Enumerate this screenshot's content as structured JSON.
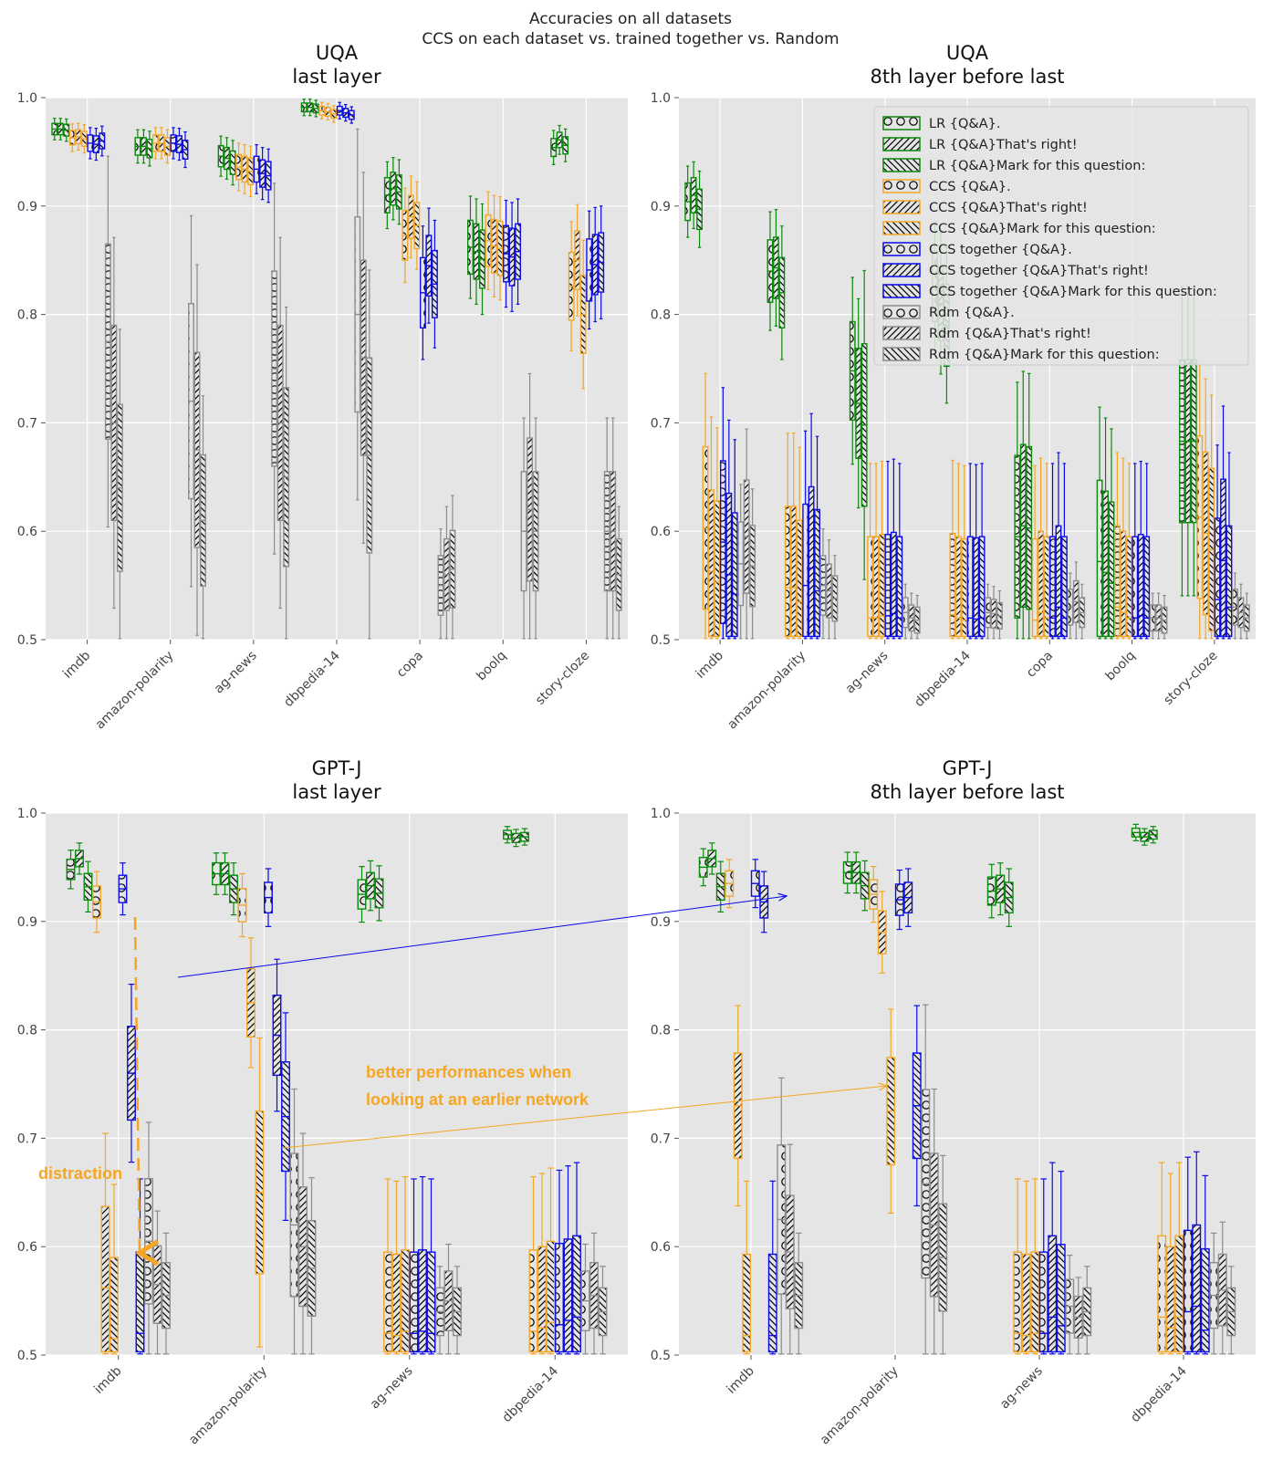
{
  "figure": {
    "title_line1": "Accuracies on all datasets",
    "title_line2": "CCS on each dataset vs. trained together vs. Random"
  },
  "colors": {
    "LR": "#0a8a0a",
    "CCS": "#f5a623",
    "CCS together": "#0a0aeb",
    "Rdm": "#8c8c8c"
  },
  "legend": {
    "entries": [
      {
        "label": "LR {Q&A}.",
        "method": "LR",
        "pattern": "circles"
      },
      {
        "label": "LR {Q&A}That's right!",
        "method": "LR",
        "pattern": "fwd"
      },
      {
        "label": "LR {Q&A}Mark for this question:",
        "method": "LR",
        "pattern": "back"
      },
      {
        "label": "CCS {Q&A}.",
        "method": "CCS",
        "pattern": "circles"
      },
      {
        "label": "CCS {Q&A}That's right!",
        "method": "CCS",
        "pattern": "fwd"
      },
      {
        "label": "CCS {Q&A}Mark for this question:",
        "method": "CCS",
        "pattern": "back"
      },
      {
        "label": "CCS together {Q&A}.",
        "method": "CCS together",
        "pattern": "circles"
      },
      {
        "label": "CCS together {Q&A}That's right!",
        "method": "CCS together",
        "pattern": "fwd"
      },
      {
        "label": "CCS together {Q&A}Mark for this question:",
        "method": "CCS together",
        "pattern": "back"
      },
      {
        "label": "Rdm {Q&A}.",
        "method": "Rdm",
        "pattern": "circles"
      },
      {
        "label": "Rdm {Q&A}That's right!",
        "method": "Rdm",
        "pattern": "fwd"
      },
      {
        "label": "Rdm {Q&A}Mark for this question:",
        "method": "Rdm",
        "pattern": "back"
      }
    ]
  },
  "annotations": {
    "distraction": "distraction",
    "better_line1": "better performances when",
    "better_line2": "looking at an earlier network"
  },
  "chart_data": [
    {
      "type": "box",
      "title_line1": "UQA",
      "title_line2": "last layer",
      "ylim": [
        0.5,
        1.0
      ],
      "yticks": [
        "0.5",
        "0.6",
        "0.7",
        "0.8",
        "0.9",
        "1.0"
      ],
      "categories": [
        "imdb",
        "amazon-polarity",
        "ag-news",
        "dbpedia-14",
        "copa",
        "boolq",
        "story-cloze"
      ],
      "series": [
        {
          "method": "LR",
          "medians": [
            [
              0.971,
              0.971,
              0.97
            ],
            [
              0.955,
              0.955,
              0.953
            ],
            [
              0.946,
              0.944,
              0.94
            ],
            [
              0.991,
              0.991,
              0.99
            ],
            [
              0.91,
              0.916,
              0.913
            ],
            [
              0.862,
              0.858,
              0.851
            ],
            [
              0.954,
              0.961,
              0.956
            ]
          ]
        },
        {
          "method": "CCS",
          "medians": [
            [
              0.963,
              0.964,
              0.962
            ],
            [
              0.958,
              0.958,
              0.955
            ],
            [
              0.936,
              0.934,
              0.932
            ],
            [
              0.988,
              0.987,
              0.985
            ],
            [
              0.873,
              0.89,
              0.882
            ],
            [
              0.868,
              0.863,
              0.861
            ],
            [
              0.826,
              0.85,
              0.8
            ]
          ]
        },
        {
          "method": "CCS together",
          "medians": [
            [
              0.958,
              0.957,
              0.96
            ],
            [
              0.958,
              0.957,
              0.952
            ],
            [
              0.934,
              0.93,
              0.928
            ],
            [
              0.988,
              0.986,
              0.984
            ],
            [
              0.82,
              0.845,
              0.828
            ],
            [
              0.856,
              0.853,
              0.858
            ],
            [
              0.841,
              0.846,
              0.848
            ]
          ]
        },
        {
          "method": "Rdm",
          "medians": [
            [
              0.775,
              0.7,
              0.64
            ],
            [
              0.72,
              0.675,
              0.61
            ],
            [
              0.75,
              0.7,
              0.65
            ],
            [
              0.8,
              0.76,
              0.67
            ],
            [
              0.55,
              0.56,
              0.565
            ],
            [
              0.6,
              0.62,
              0.6
            ],
            [
              0.6,
              0.6,
              0.56
            ]
          ]
        }
      ]
    },
    {
      "type": "box",
      "title_line1": "UQA",
      "title_line2": "8th layer before last",
      "ylim": [
        0.5,
        1.0
      ],
      "yticks": [
        "0.5",
        "0.6",
        "0.7",
        "0.8",
        "0.9",
        "1.0"
      ],
      "categories": [
        "imdb",
        "amazon-polarity",
        "ag-news",
        "dbpedia-14",
        "copa",
        "boolq",
        "story-cloze"
      ],
      "series": [
        {
          "method": "LR",
          "medians": [
            [
              0.904,
              0.91,
              0.897
            ],
            [
              0.84,
              0.843,
              0.82
            ],
            [
              0.748,
              0.718,
              0.698
            ],
            [
              0.825,
              0.81,
              0.79
            ],
            [
              0.595,
              0.605,
              0.603
            ],
            [
              0.572,
              0.562,
              0.552
            ],
            [
              0.683,
              0.683,
              0.683
            ]
          ]
        },
        {
          "method": "CCS",
          "medians": [
            [
              0.603,
              0.563,
              0.553
            ],
            [
              0.548,
              0.548,
              0.535
            ],
            [
              0.52,
              0.52,
              0.522
            ],
            [
              0.523,
              0.52,
              0.518
            ],
            [
              0.518,
              0.525,
              0.52
            ],
            [
              0.53,
              0.525,
              0.52
            ],
            [
              0.613,
              0.598,
              0.583
            ]
          ]
        },
        {
          "method": "CCS together",
          "medians": [
            [
              0.59,
              0.56,
              0.542
            ],
            [
              0.55,
              0.566,
              0.545
            ],
            [
              0.522,
              0.524,
              0.52
            ],
            [
              0.52,
              0.519,
              0.52
            ],
            [
              0.52,
              0.53,
              0.52
            ],
            [
              0.52,
              0.522,
              0.52
            ],
            [
              0.537,
              0.573,
              0.53
            ]
          ]
        },
        {
          "method": "Rdm",
          "medians": [
            [
              0.57,
              0.595,
              0.568
            ],
            [
              0.55,
              0.545,
              0.538
            ],
            [
              0.525,
              0.52,
              0.518
            ],
            [
              0.525,
              0.524,
              0.522
            ],
            [
              0.53,
              0.535,
              0.525
            ],
            [
              0.52,
              0.52,
              0.518
            ],
            [
              0.53,
              0.525,
              0.52
            ]
          ]
        }
      ]
    },
    {
      "type": "box",
      "title_line1": "GPT-J",
      "title_line2": "last layer",
      "ylim": [
        0.5,
        1.0
      ],
      "yticks": [
        "0.5",
        "0.6",
        "0.7",
        "0.8",
        "0.9",
        "1.0"
      ],
      "categories": [
        "imdb",
        "amazon-polarity",
        "ag-news",
        "dbpedia-14"
      ],
      "series": [
        {
          "method": "LR",
          "medians": [
            [
              0.948,
              0.958,
              0.932
            ],
            [
              0.944,
              0.944,
              0.93
            ],
            [
              0.925,
              0.933,
              0.926
            ],
            [
              0.98,
              0.977,
              0.978
            ]
          ]
        },
        {
          "method": "CCS",
          "medians": [
            [
              0.918,
              0.562,
              0.515
            ],
            [
              0.915,
              0.825,
              0.65
            ],
            [
              0.52,
              0.518,
              0.522
            ],
            [
              0.522,
              0.525,
              0.53
            ]
          ]
        },
        {
          "method": "CCS together",
          "medians": [
            [
              0.93,
              0.76,
              0.52
            ],
            [
              0.922,
              0.795,
              0.72
            ],
            [
              0.52,
              0.522,
              0.52
            ],
            [
              0.528,
              0.532,
              0.535
            ]
          ]
        },
        {
          "method": "Rdm",
          "medians": [
            [
              0.605,
              0.565,
              0.555
            ],
            [
              0.62,
              0.6,
              0.58
            ],
            [
              0.54,
              0.55,
              0.54
            ],
            [
              0.55,
              0.555,
              0.54
            ]
          ]
        }
      ]
    },
    {
      "type": "box",
      "title_line1": "GPT-J",
      "title_line2": "8th layer before last",
      "ylim": [
        0.5,
        1.0
      ],
      "yticks": [
        "0.5",
        "0.6",
        "0.7",
        "0.8",
        "0.9",
        "1.0"
      ],
      "categories": [
        "imdb",
        "amazon-polarity",
        "ag-news",
        "dbpedia-14"
      ],
      "series": [
        {
          "method": "LR",
          "medians": [
            [
              0.95,
              0.958,
              0.932
            ],
            [
              0.945,
              0.945,
              0.933
            ],
            [
              0.928,
              0.93,
              0.922
            ],
            [
              0.982,
              0.978,
              0.98
            ]
          ]
        },
        {
          "method": "CCS",
          "medians": [
            [
              0.935,
              0.73,
              0.518
            ],
            [
              0.925,
              0.89,
              0.725
            ],
            [
              0.52,
              0.518,
              0.52
            ],
            [
              0.535,
              0.525,
              0.535
            ]
          ]
        },
        {
          "method": "CCS together",
          "medians": [
            [
              0.935,
              0.918,
              0.518
            ],
            [
              0.92,
              0.922,
              0.73
            ],
            [
              0.52,
              0.535,
              0.527
            ],
            [
              0.54,
              0.545,
              0.523
            ]
          ]
        },
        {
          "method": "Rdm",
          "medians": [
            [
              0.625,
              0.595,
              0.555
            ],
            [
              0.658,
              0.62,
              0.59
            ],
            [
              0.545,
              0.535,
              0.54
            ],
            [
              0.555,
              0.56,
              0.54
            ]
          ]
        }
      ]
    }
  ]
}
